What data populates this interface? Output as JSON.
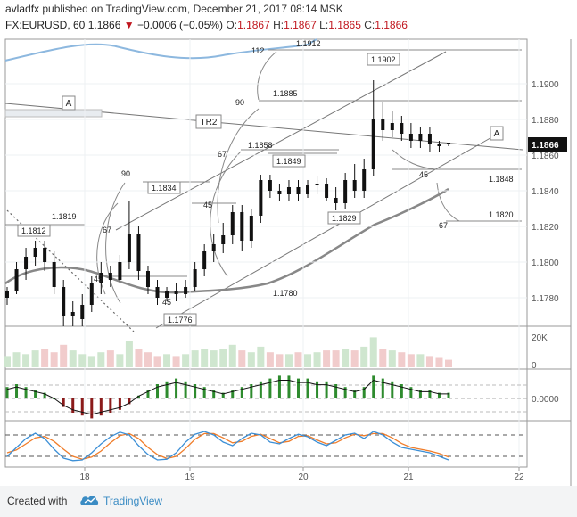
{
  "header": {
    "author": "avladfx",
    "published": "published on TradingView.com, December 21, 2017 08:14 MSK",
    "symbol": "FX:EURUSD, 60",
    "last": "1.1866",
    "change_arrow": "▼",
    "change": "−0.0006 (−0.05%)",
    "o_label": "O:",
    "o": "1.1867",
    "h_label": "H:",
    "h": "1.1867",
    "l_label": "L:",
    "l": "1.1865",
    "c_label": "C:",
    "c": "1.1866"
  },
  "footer": {
    "created_with": "Created with",
    "brand": "TradingView",
    "logo_icon": "tradingview-cloud-icon"
  },
  "colors": {
    "candle": "#111111",
    "grid": "#eef0f3",
    "trend": "#6b6b6b",
    "band": "#8db8df",
    "ma": "#888888",
    "hist_pos": "#2e8b2e",
    "hist_neg": "#8b1a1a",
    "stoch_k": "#3c8fd6",
    "stoch_d": "#f07d2a",
    "last_price_bg": "#111111"
  },
  "chart_data": {
    "type": "candlestick",
    "symbol": "FX:EURUSD",
    "interval": "60",
    "ylim": [
      1.1764,
      1.1925
    ],
    "price_ticks": [
      "1.1900",
      "1.1880",
      "1.1860",
      "1.1840",
      "1.1820",
      "1.1800",
      "1.1780"
    ],
    "last_price_label": "1.1866",
    "x_ticks": [
      "18",
      "19",
      "20",
      "21",
      "22"
    ],
    "volume_axis": [
      "20K",
      "0"
    ],
    "macd_axis": [
      "0.0000"
    ],
    "candles": [
      {
        "o": 1.178,
        "h": 1.1786,
        "l": 1.1776,
        "c": 1.1784
      },
      {
        "o": 1.1784,
        "h": 1.18,
        "l": 1.1782,
        "c": 1.1796
      },
      {
        "o": 1.1796,
        "h": 1.1808,
        "l": 1.179,
        "c": 1.1803
      },
      {
        "o": 1.1803,
        "h": 1.1812,
        "l": 1.1798,
        "c": 1.1808
      },
      {
        "o": 1.1808,
        "h": 1.1812,
        "l": 1.1795,
        "c": 1.18
      },
      {
        "o": 1.18,
        "h": 1.1806,
        "l": 1.1782,
        "c": 1.1786
      },
      {
        "o": 1.1786,
        "h": 1.179,
        "l": 1.1764,
        "c": 1.177
      },
      {
        "o": 1.177,
        "h": 1.1778,
        "l": 1.1764,
        "c": 1.1772
      },
      {
        "o": 1.1768,
        "h": 1.1782,
        "l": 1.1764,
        "c": 1.1776
      },
      {
        "o": 1.1776,
        "h": 1.1792,
        "l": 1.1772,
        "c": 1.1788
      },
      {
        "o": 1.1788,
        "h": 1.18,
        "l": 1.1782,
        "c": 1.1794
      },
      {
        "o": 1.1794,
        "h": 1.1798,
        "l": 1.1786,
        "c": 1.179
      },
      {
        "o": 1.179,
        "h": 1.1804,
        "l": 1.1788,
        "c": 1.18
      },
      {
        "o": 1.18,
        "h": 1.1834,
        "l": 1.1796,
        "c": 1.1816
      },
      {
        "o": 1.1816,
        "h": 1.182,
        "l": 1.179,
        "c": 1.1795
      },
      {
        "o": 1.1795,
        "h": 1.1798,
        "l": 1.1782,
        "c": 1.1786
      },
      {
        "o": 1.1786,
        "h": 1.179,
        "l": 1.1776,
        "c": 1.178
      },
      {
        "o": 1.178,
        "h": 1.1786,
        "l": 1.1778,
        "c": 1.1784
      },
      {
        "o": 1.1784,
        "h": 1.1788,
        "l": 1.1778,
        "c": 1.1782
      },
      {
        "o": 1.1782,
        "h": 1.179,
        "l": 1.178,
        "c": 1.1786
      },
      {
        "o": 1.1786,
        "h": 1.18,
        "l": 1.1784,
        "c": 1.1796
      },
      {
        "o": 1.1796,
        "h": 1.181,
        "l": 1.1792,
        "c": 1.1806
      },
      {
        "o": 1.1806,
        "h": 1.1816,
        "l": 1.18,
        "c": 1.181
      },
      {
        "o": 1.181,
        "h": 1.1822,
        "l": 1.1805,
        "c": 1.1815
      },
      {
        "o": 1.1815,
        "h": 1.1832,
        "l": 1.181,
        "c": 1.1828
      },
      {
        "o": 1.1828,
        "h": 1.1832,
        "l": 1.1806,
        "c": 1.1812
      },
      {
        "o": 1.1812,
        "h": 1.183,
        "l": 1.1808,
        "c": 1.1826
      },
      {
        "o": 1.1826,
        "h": 1.1849,
        "l": 1.1822,
        "c": 1.1846
      },
      {
        "o": 1.1846,
        "h": 1.1849,
        "l": 1.1836,
        "c": 1.184
      },
      {
        "o": 1.184,
        "h": 1.1844,
        "l": 1.1834,
        "c": 1.1838
      },
      {
        "o": 1.1838,
        "h": 1.1846,
        "l": 1.1834,
        "c": 1.1842
      },
      {
        "o": 1.1842,
        "h": 1.1846,
        "l": 1.1834,
        "c": 1.1838
      },
      {
        "o": 1.1838,
        "h": 1.1846,
        "l": 1.1836,
        "c": 1.1843
      },
      {
        "o": 1.1843,
        "h": 1.1848,
        "l": 1.1838,
        "c": 1.1844
      },
      {
        "o": 1.1844,
        "h": 1.1847,
        "l": 1.1834,
        "c": 1.1836
      },
      {
        "o": 1.1836,
        "h": 1.1842,
        "l": 1.1829,
        "c": 1.1833
      },
      {
        "o": 1.1833,
        "h": 1.185,
        "l": 1.183,
        "c": 1.1846
      },
      {
        "o": 1.1846,
        "h": 1.1855,
        "l": 1.1836,
        "c": 1.184
      },
      {
        "o": 1.184,
        "h": 1.1858,
        "l": 1.1836,
        "c": 1.1852
      },
      {
        "o": 1.1852,
        "h": 1.1902,
        "l": 1.1848,
        "c": 1.188
      },
      {
        "o": 1.188,
        "h": 1.189,
        "l": 1.1868,
        "c": 1.1874
      },
      {
        "o": 1.1874,
        "h": 1.1885,
        "l": 1.187,
        "c": 1.1878
      },
      {
        "o": 1.1878,
        "h": 1.1882,
        "l": 1.1868,
        "c": 1.1872
      },
      {
        "o": 1.1872,
        "h": 1.1878,
        "l": 1.1864,
        "c": 1.1868
      },
      {
        "o": 1.1868,
        "h": 1.1876,
        "l": 1.1864,
        "c": 1.1872
      },
      {
        "o": 1.1872,
        "h": 1.1876,
        "l": 1.1862,
        "c": 1.1866
      },
      {
        "o": 1.1866,
        "h": 1.1868,
        "l": 1.1862,
        "c": 1.1865
      },
      {
        "o": 1.1867,
        "h": 1.1867,
        "l": 1.1865,
        "c": 1.1866
      }
    ],
    "price_labels": [
      "1.1912",
      "1.1902",
      "1.1885",
      "1.1858",
      "1.1849",
      "1.1848",
      "1.1834",
      "1.1829",
      "1.1820",
      "1.1819",
      "1.1812",
      "1.1780",
      "1.1776"
    ],
    "level_labels": [
      "112",
      "90",
      "67",
      "45",
      "90",
      "67",
      "45",
      "45",
      "67",
      "45"
    ],
    "annotations": [
      "A",
      "TR2",
      "A"
    ],
    "volume": [
      6,
      8,
      7,
      9,
      10,
      8,
      12,
      9,
      7,
      6,
      8,
      9,
      7,
      14,
      10,
      8,
      6,
      7,
      6,
      7,
      9,
      10,
      9,
      10,
      12,
      9,
      8,
      11,
      8,
      7,
      7,
      8,
      7,
      8,
      9,
      9,
      10,
      9,
      11,
      16,
      10,
      9,
      8,
      7,
      7,
      6,
      5,
      4
    ],
    "macd_hist": [
      4,
      5,
      4,
      3,
      2,
      0,
      -3,
      -5,
      -6,
      -7,
      -6,
      -5,
      -4,
      -2,
      1,
      3,
      5,
      6,
      7,
      6,
      5,
      4,
      3,
      2,
      3,
      4,
      5,
      6,
      7,
      8,
      8,
      7,
      7,
      6,
      6,
      5,
      4,
      3,
      4,
      8,
      7,
      6,
      5,
      4,
      3,
      3,
      2,
      2
    ],
    "stoch_k": [
      20,
      45,
      70,
      85,
      70,
      40,
      15,
      8,
      10,
      30,
      55,
      75,
      88,
      80,
      50,
      25,
      10,
      12,
      30,
      60,
      82,
      90,
      80,
      60,
      50,
      70,
      85,
      80,
      60,
      55,
      70,
      82,
      75,
      60,
      50,
      65,
      80,
      85,
      70,
      90,
      80,
      60,
      45,
      40,
      35,
      30,
      20,
      10
    ],
    "stoch_d": [
      30,
      38,
      55,
      72,
      76,
      62,
      40,
      20,
      12,
      18,
      35,
      58,
      78,
      84,
      70,
      45,
      25,
      14,
      20,
      42,
      68,
      84,
      84,
      72,
      58,
      62,
      76,
      82,
      70,
      58,
      62,
      76,
      78,
      66,
      55,
      58,
      72,
      82,
      78,
      84,
      84,
      72,
      56,
      45,
      40,
      35,
      28,
      18
    ]
  }
}
